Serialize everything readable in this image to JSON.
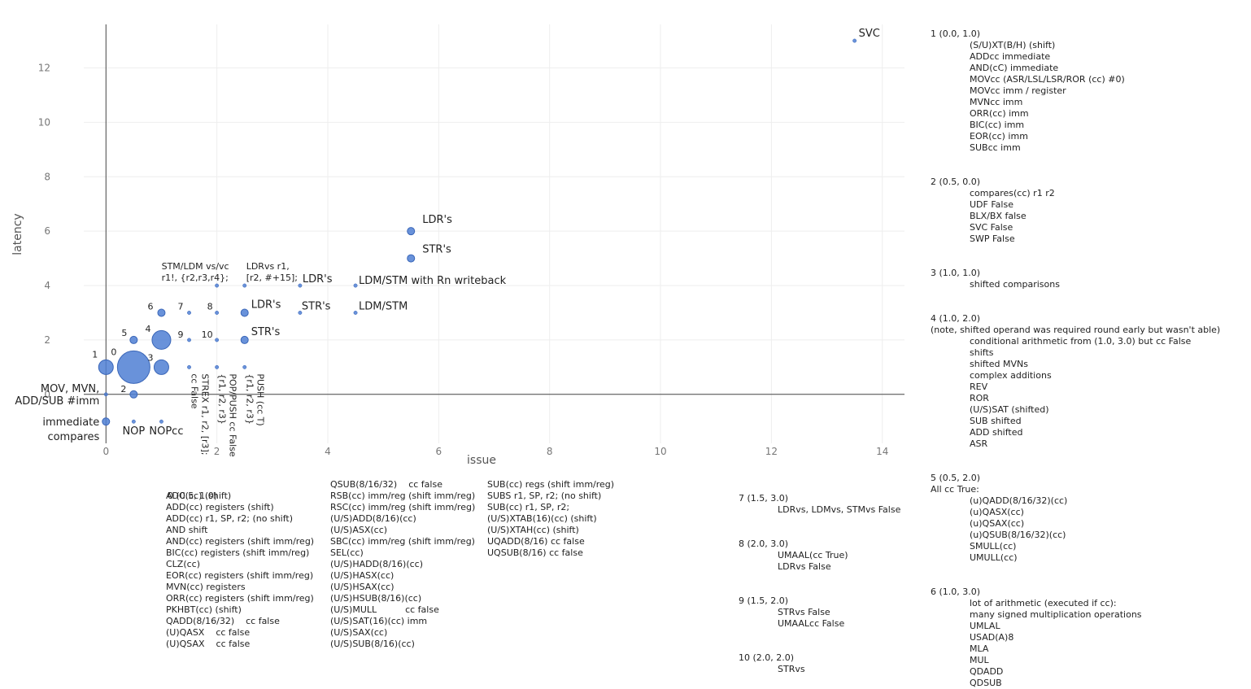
{
  "chart_data": {
    "type": "scatter",
    "title": "",
    "xlabel": "issue",
    "ylabel": "latency",
    "xlim": [
      -0.4,
      14.4
    ],
    "ylim": [
      -1.8,
      13.6
    ],
    "xticks": [
      "0",
      "2",
      "4",
      "6",
      "8",
      "10",
      "12",
      "14"
    ],
    "xtick_values": [
      0,
      2,
      4,
      6,
      8,
      10,
      12,
      14
    ],
    "yticks": [
      "0",
      "2",
      "4",
      "6",
      "8",
      "10",
      "12"
    ],
    "ytick_values": [
      0,
      2,
      4,
      6,
      8,
      10,
      12
    ],
    "grid": true,
    "color": "#4f7fd3",
    "points": [
      {
        "x": 0.5,
        "y": 1.0,
        "size": "xl",
        "label": "0"
      },
      {
        "x": 0.0,
        "y": 1.0,
        "size": "m",
        "label": "1"
      },
      {
        "x": 0.5,
        "y": 0.0,
        "size": "s",
        "label": "2"
      },
      {
        "x": 1.0,
        "y": 1.0,
        "size": "m",
        "label": "3"
      },
      {
        "x": 1.0,
        "y": 2.0,
        "size": "l",
        "label": "4"
      },
      {
        "x": 0.5,
        "y": 2.0,
        "size": "s",
        "label": "5"
      },
      {
        "x": 1.0,
        "y": 3.0,
        "size": "s",
        "label": "6"
      },
      {
        "x": 1.5,
        "y": 3.0,
        "size": "xs",
        "label": "7"
      },
      {
        "x": 2.0,
        "y": 3.0,
        "size": "xs",
        "label": "8"
      },
      {
        "x": 1.5,
        "y": 2.0,
        "size": "xs",
        "label": "9"
      },
      {
        "x": 2.0,
        "y": 2.0,
        "size": "xs",
        "label": "10"
      },
      {
        "x": 0.0,
        "y": 0.0,
        "size": "xs",
        "label": "MOV, MVN,\nADD/SUB #imm"
      },
      {
        "x": 0.0,
        "y": -1.0,
        "size": "s",
        "label": "immediate\ncompares"
      },
      {
        "x": 0.5,
        "y": -1.0,
        "size": "xs",
        "label": "NOP"
      },
      {
        "x": 1.0,
        "y": -1.0,
        "size": "xs",
        "label": "NOPcc"
      },
      {
        "x": 1.5,
        "y": 1.0,
        "size": "xs",
        "label": "STREX r1, r2, [r3];\ncc False"
      },
      {
        "x": 2.0,
        "y": 1.0,
        "size": "xs",
        "label": "POP/PUSH cc False\n{r1, r2, r3}"
      },
      {
        "x": 2.5,
        "y": 1.0,
        "size": "xs",
        "label": "PUSH (cc T)\n{r1, r2, r3}"
      },
      {
        "x": 2.5,
        "y": 2.0,
        "size": "s",
        "label": "STR's"
      },
      {
        "x": 2.5,
        "y": 3.0,
        "size": "s",
        "label": "LDR's"
      },
      {
        "x": 2.0,
        "y": 4.0,
        "size": "xs",
        "label": "STM/LDM vs/vc\nr1!, {r2,r3,r4};"
      },
      {
        "x": 2.5,
        "y": 4.0,
        "size": "xs",
        "label": "LDRvs r1,\n[r2, #+15];"
      },
      {
        "x": 3.5,
        "y": 4.0,
        "size": "xs",
        "label": "LDR's"
      },
      {
        "x": 3.5,
        "y": 3.0,
        "size": "xs",
        "label": "STR's"
      },
      {
        "x": 4.5,
        "y": 4.0,
        "size": "xs",
        "label": "LDM/STM with Rn writeback"
      },
      {
        "x": 4.5,
        "y": 3.0,
        "size": "xs",
        "label": "LDM/STM"
      },
      {
        "x": 5.5,
        "y": 6.0,
        "size": "s",
        "label": "LDR's"
      },
      {
        "x": 5.5,
        "y": 5.0,
        "size": "s",
        "label": "STR's"
      },
      {
        "x": 13.5,
        "y": 13.0,
        "size": "xs",
        "label": "SVC"
      }
    ]
  },
  "legend_right": [
    {
      "header": "1 (0.0, 1.0)",
      "items": [
        "(S/U)XT(B/H) (shift)",
        "ADDcc immediate",
        "AND(cC) immediate",
        "MOVcc (ASR/LSL/LSR/ROR (cc) #0)",
        "MOVcc imm / register",
        "MVNcc imm",
        "ORR(cc) imm",
        "BIC(cc) imm",
        "EOR(cc) imm",
        "SUBcc imm"
      ]
    },
    {
      "header": "2 (0.5, 0.0)",
      "items": [
        "compares(cc) r1 r2",
        "UDF False",
        "BLX/BX false",
        "SVC False",
        "SWP False"
      ]
    },
    {
      "header": "3 (1.0, 1.0)",
      "items": [
        "shifted comparisons"
      ]
    },
    {
      "header": "4 (1.0, 2.0)",
      "subheader": "(note, shifted operand was required round early but wasn't able)",
      "items": [
        "conditional arithmetic from (1.0, 3.0) but cc False",
        "shifts",
        "shifted MVNs",
        "complex additions",
        "REV",
        "ROR",
        "(U/S)SAT (shifted)",
        "SUB shifted",
        "ADD shifted",
        "ASR"
      ]
    },
    {
      "header": "5 (0.5, 2.0)",
      "subheader": "All cc True:",
      "items": [
        "(u)QADD(8/16/32)(cc)",
        "(u)QASX(cc)",
        "(u)QSAX(cc)",
        "(u)QSUB(8/16/32)(cc)",
        "SMULL(cc)",
        "UMULL(cc)"
      ]
    },
    {
      "header": "6 (1.0, 3.0)",
      "items": [
        "lot of arithmetic (executed if cc):",
        "many signed multiplication operations",
        "UMLAL",
        "USAD(A)8",
        "MLA",
        "MUL",
        "QDADD",
        "QDSUB"
      ]
    }
  ],
  "legend_mid": [
    {
      "header": "7 (1.5, 3.0)",
      "items": [
        "LDRvs, LDMvs, STMvs False"
      ]
    },
    {
      "header": "8 (2.0, 3.0)",
      "items": [
        "UMAAL(cc True)",
        "LDRvs False"
      ]
    },
    {
      "header": "9 (1.5, 2.0)",
      "items": [
        "STRvs False",
        "UMAALcc False"
      ]
    },
    {
      "header": "10 (2.0, 2.0)",
      "items": [
        "STRvs"
      ]
    }
  ],
  "legend_zero": {
    "header": "0 (0.5, 1.0)",
    "col1": [
      "ADC(cc) (shift)",
      "ADD(cc) registers (shift)",
      "ADD(cc) r1, SP, r2; (no shift)",
      "AND shift",
      "AND(cc) registers (shift imm/reg)",
      "BIC(cc) registers (shift imm/reg)",
      "CLZ(cc)",
      "EOR(cc) registers (shift imm/reg)",
      "MVN(cc) registers",
      "ORR(cc) registers (shift imm/reg)",
      "PKHBT(cc) (shift)",
      "QADD(8/16/32)    cc false",
      "(U)QASX    cc false",
      "(U)QSAX    cc false"
    ],
    "col2": [
      "QSUB(8/16/32)    cc false",
      "RSB(cc) imm/reg (shift imm/reg)",
      "RSC(cc) imm/reg (shift imm/reg)",
      "(U/S)ADD(8/16)(cc)",
      "(U/S)ASX(cc)",
      "SBC(cc) imm/reg (shift imm/reg)",
      "SEL(cc)",
      "(U/S)HADD(8/16)(cc)",
      "(U/S)HASX(cc)",
      "(U/S)HSAX(cc)",
      "(U/S)HSUB(8/16)(cc)",
      "(U/S)MULL          cc false",
      "(U/S)SAT(16)(cc) imm",
      "(U/S)SAX(cc)",
      "(U/S)SUB(8/16)(cc)"
    ],
    "col3": [
      "SUB(cc) regs (shift imm/reg)",
      "SUBS r1, SP, r2; (no shift)",
      "SUB(cc) r1, SP, r2;",
      "(U/S)XTAB(16)(cc) (shift)",
      "(U/S)XTAH(cc) (shift)",
      "UQADD(8/16) cc false",
      "UQSUB(8/16) cc false"
    ]
  }
}
